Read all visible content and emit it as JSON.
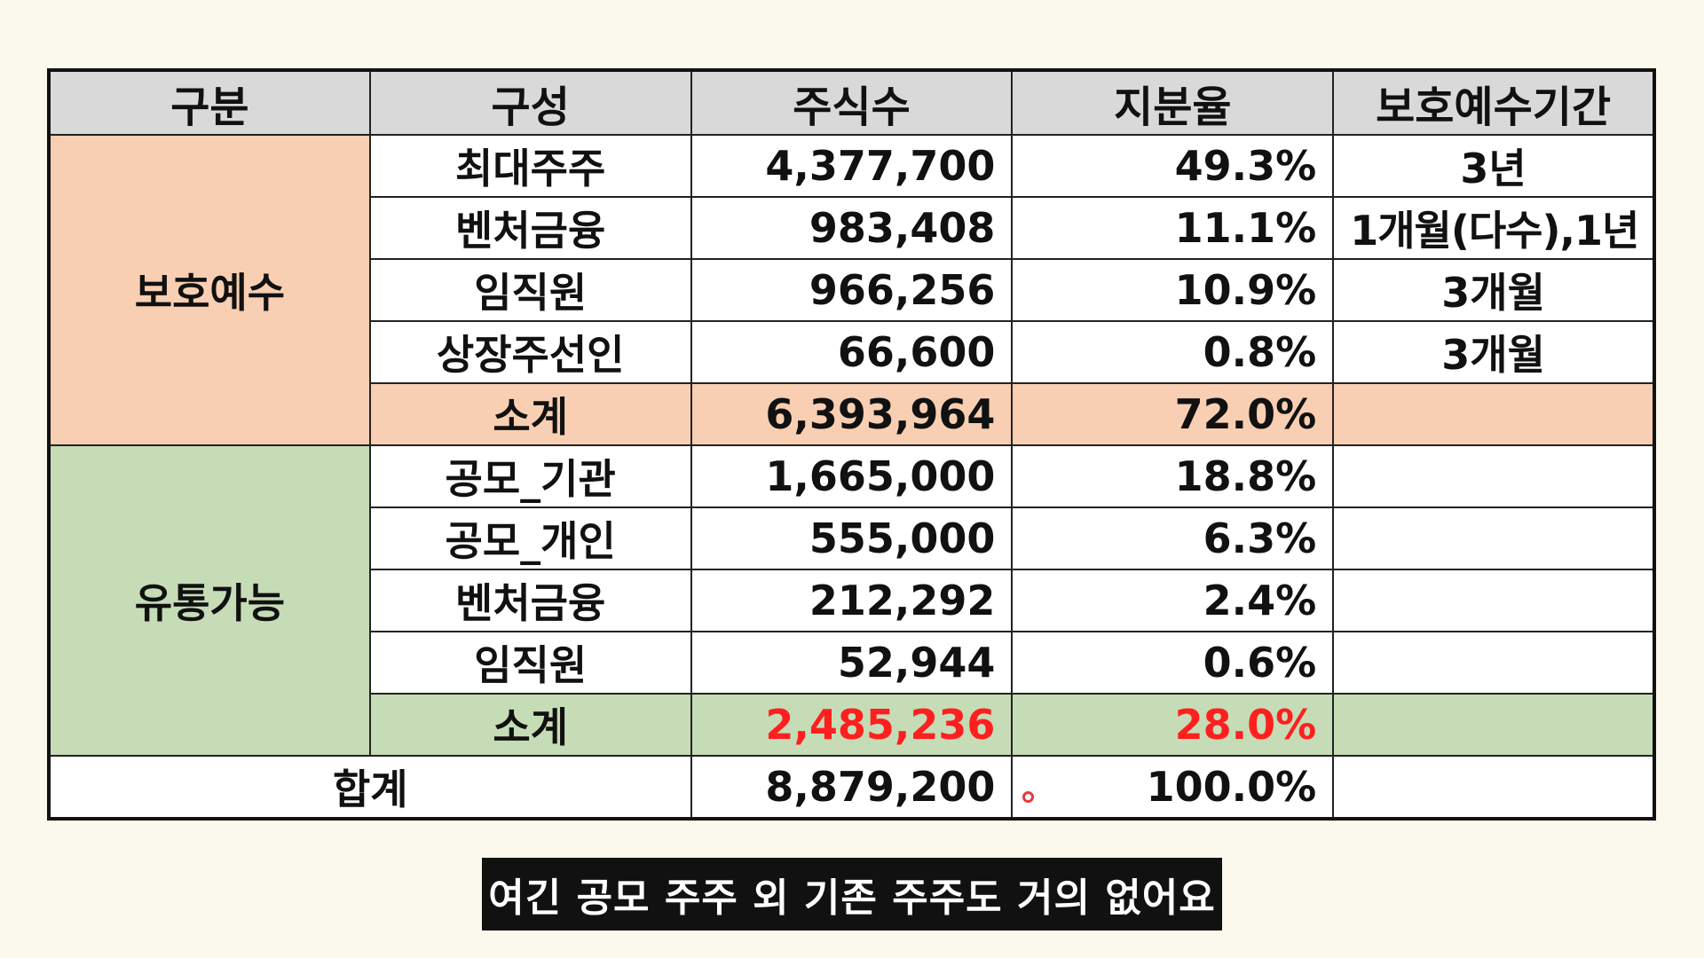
{
  "table": {
    "headers": [
      "구분",
      "구성",
      "주식수",
      "지분율",
      "보호예수기간"
    ],
    "groups": [
      {
        "name": "보호예수",
        "color": "#f8cfb2",
        "rows": [
          {
            "item": "최대주주",
            "shares": "4,377,700",
            "ratio": "49.3%",
            "period": "3년"
          },
          {
            "item": "벤처금융",
            "shares": "983,408",
            "ratio": "11.1%",
            "period": "1개월(다수),1년"
          },
          {
            "item": "임직원",
            "shares": "966,256",
            "ratio": "10.9%",
            "period": "3개월"
          },
          {
            "item": "상장주선인",
            "shares": "66,600",
            "ratio": "0.8%",
            "period": "3개월"
          }
        ],
        "subtotal": {
          "label": "소계",
          "shares": "6,393,964",
          "ratio": "72.0%"
        }
      },
      {
        "name": "유통가능",
        "color": "#c6dcb6",
        "rows": [
          {
            "item": "공모_기관",
            "shares": "1,665,000",
            "ratio": "18.8%",
            "period": ""
          },
          {
            "item": "공모_개인",
            "shares": "555,000",
            "ratio": "6.3%",
            "period": ""
          },
          {
            "item": "벤처금융",
            "shares": "212,292",
            "ratio": "2.4%",
            "period": ""
          },
          {
            "item": "임직원",
            "shares": "52,944",
            "ratio": "0.6%",
            "period": ""
          }
        ],
        "subtotal": {
          "label": "소계",
          "shares": "2,485,236",
          "ratio": "28.0%",
          "highlight_color": "#ff1f1f"
        }
      }
    ],
    "total": {
      "label": "합계",
      "shares": "8,879,200",
      "ratio": "100.0%"
    }
  },
  "subtitle": "여긴 공모 주주 외 기존 주주도 거의 없어요"
}
